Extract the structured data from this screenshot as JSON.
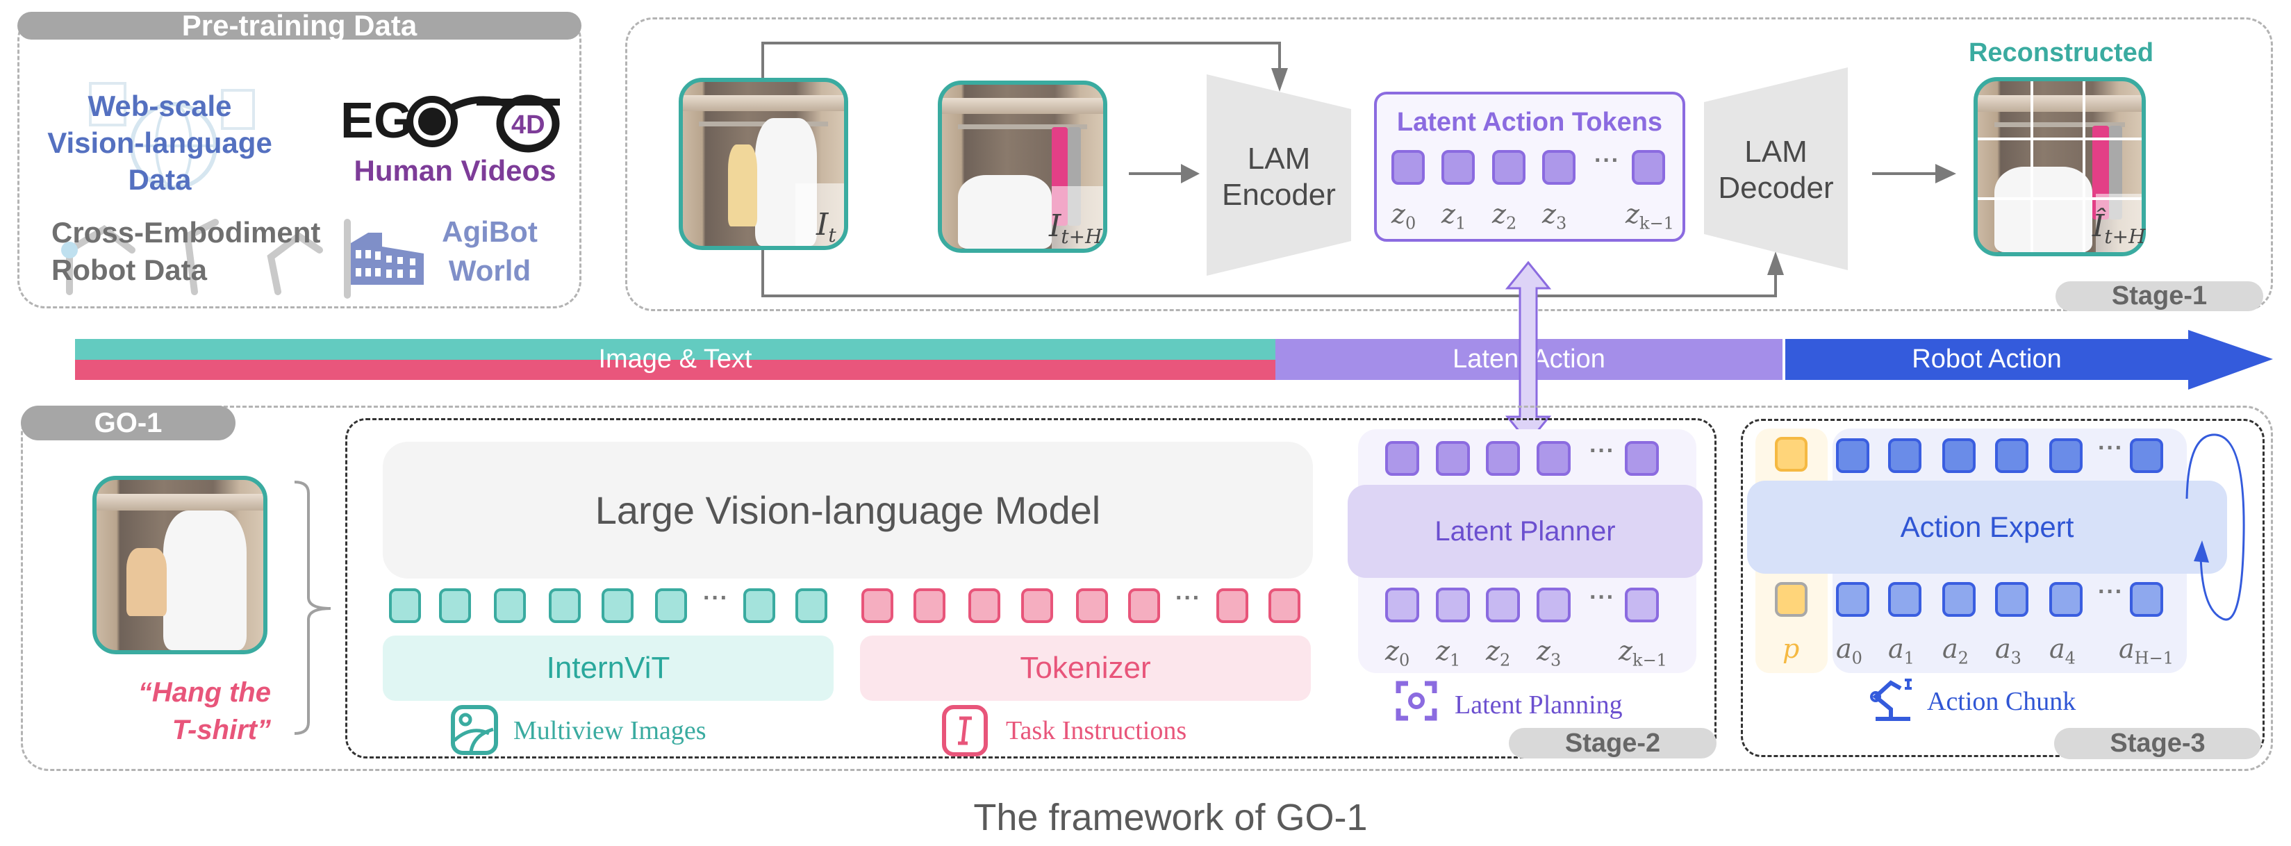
{
  "pretraining": {
    "title": "Pre-training Data",
    "web": [
      "Web-scale",
      "Vision-language",
      "Data"
    ],
    "ego_logo": "EGO 4D",
    "human_videos": "Human Videos",
    "cross": [
      "Cross-Embodiment",
      "Robot Data"
    ],
    "agibot": [
      "AgiBot",
      "World"
    ]
  },
  "stage1": {
    "image_t": {
      "base": "I",
      "sub": "t"
    },
    "image_th": {
      "base": "I",
      "sub": "t+H"
    },
    "encoder": [
      "LAM",
      "Encoder"
    ],
    "tokens_title": "Latent Action Tokens",
    "token_labels": [
      {
        "base": "z",
        "sub": "0"
      },
      {
        "base": "z",
        "sub": "1"
      },
      {
        "base": "z",
        "sub": "2"
      },
      {
        "base": "z",
        "sub": "3"
      },
      {
        "base": "z",
        "sub": "k−1"
      }
    ],
    "decoder": [
      "LAM",
      "Decoder"
    ],
    "reconstructed": "Reconstructed",
    "recon_label": {
      "base": "Î",
      "sub": "t+H"
    },
    "stage": "Stage-1"
  },
  "ellipsis": "···",
  "flow_bar": {
    "segments": [
      {
        "label": "Image & Text",
        "colors": [
          "#63cbc0",
          "#e9567c"
        ]
      },
      {
        "label": "Latent Action",
        "colors": [
          "#a48ee9"
        ]
      },
      {
        "label": "Robot Action",
        "colors": [
          "#345bdc"
        ]
      }
    ]
  },
  "go1": {
    "title": "GO-1",
    "instruction": [
      "“Hang the",
      "T-shirt”"
    ],
    "vlm": "Large Vision-language Model",
    "internvit": "InternViT",
    "tokenizer": "Tokenizer",
    "multiview": "Multiview Images",
    "task": "Task Instructions",
    "latent_planner": "Latent Planner",
    "latent_labels": [
      {
        "base": "z",
        "sub": "0"
      },
      {
        "base": "z",
        "sub": "1"
      },
      {
        "base": "z",
        "sub": "2"
      },
      {
        "base": "z",
        "sub": "3"
      },
      {
        "base": "z",
        "sub": "k−1"
      }
    ],
    "latent_planning": "Latent Planning",
    "stage2": "Stage-2",
    "action_expert": "Action Expert",
    "p_label": "p",
    "action_labels": [
      {
        "base": "a",
        "sub": "0"
      },
      {
        "base": "a",
        "sub": "1"
      },
      {
        "base": "a",
        "sub": "2"
      },
      {
        "base": "a",
        "sub": "3"
      },
      {
        "base": "a",
        "sub": "4"
      },
      {
        "base": "a",
        "sub": "H−1"
      }
    ],
    "action_chunk": "Action Chunk",
    "stage3": "Stage-3"
  },
  "caption": "The framework of GO-1",
  "colors": {
    "teal": "#3aaba0",
    "pink": "#e8557a",
    "purple": "#8b6be0",
    "blue": "#345bdc",
    "grey_pill": "#a6a6a6",
    "stage_pill": "#d9d9d9"
  }
}
